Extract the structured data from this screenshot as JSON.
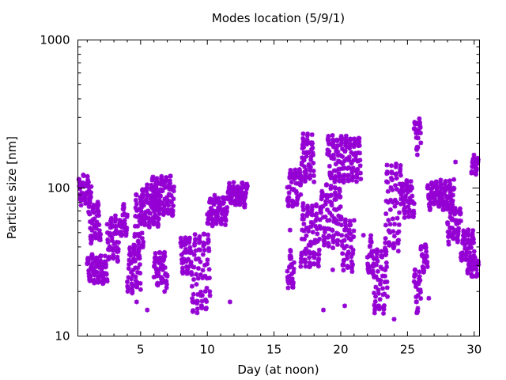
{
  "chart_data": {
    "type": "scatter",
    "title": "Modes location (5/9/1)",
    "xlabel": "Day (at noon)",
    "ylabel": "Particle size [nm]",
    "xlim": [
      0.3,
      30.4
    ],
    "ylim": [
      10,
      1000
    ],
    "yscale": "log",
    "x_ticks": [
      5,
      10,
      15,
      20,
      25,
      30
    ],
    "y_ticks": [
      10,
      100,
      1000
    ],
    "grid": false,
    "legend": "none",
    "marker": "asterisk",
    "color": "#9400d3",
    "series": [
      {
        "bands": [
          {
            "x0": 0.3,
            "x1": 1.3,
            "lo": 75,
            "hi": 125
          },
          {
            "x0": 1.0,
            "x1": 2.5,
            "lo": 22,
            "hi": 36
          },
          {
            "x0": 1.1,
            "x1": 2.0,
            "lo": 40,
            "hi": 85
          },
          {
            "x0": 2.5,
            "x1": 3.5,
            "lo": 30,
            "hi": 70
          },
          {
            "x0": 3.5,
            "x1": 4.0,
            "lo": 45,
            "hi": 80
          },
          {
            "x0": 4.0,
            "x1": 5.0,
            "lo": 18,
            "hi": 45
          },
          {
            "x0": 4.5,
            "x1": 5.2,
            "lo": 35,
            "hi": 100
          },
          {
            "x0": 5.0,
            "x1": 6.5,
            "lo": 50,
            "hi": 115
          },
          {
            "x0": 5.8,
            "x1": 7.5,
            "lo": 60,
            "hi": 130
          },
          {
            "x0": 6.0,
            "x1": 7.0,
            "lo": 20,
            "hi": 40
          },
          {
            "x0": 8.0,
            "x1": 8.8,
            "lo": 25,
            "hi": 50
          },
          {
            "x0": 8.8,
            "x1": 10.2,
            "lo": 12,
            "hi": 60
          },
          {
            "x0": 10.0,
            "x1": 11.5,
            "lo": 55,
            "hi": 90
          },
          {
            "x0": 11.5,
            "x1": 13.0,
            "lo": 75,
            "hi": 108
          },
          {
            "x0": 16.0,
            "x1": 17.0,
            "lo": 70,
            "hi": 150
          },
          {
            "x0": 16.0,
            "x1": 16.5,
            "lo": 20,
            "hi": 40
          },
          {
            "x0": 17.0,
            "x1": 18.0,
            "lo": 100,
            "hi": 250
          },
          {
            "x0": 17.0,
            "x1": 18.5,
            "lo": 25,
            "hi": 90
          },
          {
            "x0": 18.5,
            "x1": 20.0,
            "lo": 35,
            "hi": 120
          },
          {
            "x0": 19.0,
            "x1": 21.5,
            "lo": 100,
            "hi": 250
          },
          {
            "x0": 20.0,
            "x1": 21.0,
            "lo": 25,
            "hi": 70
          },
          {
            "x0": 22.0,
            "x1": 22.5,
            "lo": 25,
            "hi": 50
          },
          {
            "x0": 22.5,
            "x1": 23.5,
            "lo": 12,
            "hi": 45
          },
          {
            "x0": 23.3,
            "x1": 24.5,
            "lo": 30,
            "hi": 180
          },
          {
            "x0": 24.5,
            "x1": 25.5,
            "lo": 60,
            "hi": 120
          },
          {
            "x0": 25.5,
            "x1": 26.0,
            "lo": 160,
            "hi": 320
          },
          {
            "x0": 25.5,
            "x1": 26.0,
            "lo": 13,
            "hi": 30
          },
          {
            "x0": 26.0,
            "x1": 26.5,
            "lo": 25,
            "hi": 45
          },
          {
            "x0": 26.5,
            "x1": 28.5,
            "lo": 70,
            "hi": 115
          },
          {
            "x0": 28.0,
            "x1": 29.0,
            "lo": 40,
            "hi": 80
          },
          {
            "x0": 29.0,
            "x1": 30.0,
            "lo": 30,
            "hi": 55
          },
          {
            "x0": 29.5,
            "x1": 30.4,
            "lo": 25,
            "hi": 35
          },
          {
            "x0": 29.8,
            "x1": 30.3,
            "lo": 120,
            "hi": 170
          }
        ],
        "points": [
          [
            1.8,
            70
          ],
          [
            1.9,
            45
          ],
          [
            4.7,
            17
          ],
          [
            5.5,
            15
          ],
          [
            6.8,
            20
          ],
          [
            6.3,
            55
          ],
          [
            11.7,
            17
          ],
          [
            16.2,
            52
          ],
          [
            18.7,
            15
          ],
          [
            20.3,
            16
          ],
          [
            24.0,
            13
          ],
          [
            26.6,
            18
          ],
          [
            22.5,
            25
          ],
          [
            28.6,
            150
          ],
          [
            19.4,
            28
          ],
          [
            21.7,
            48
          ]
        ]
      }
    ]
  }
}
